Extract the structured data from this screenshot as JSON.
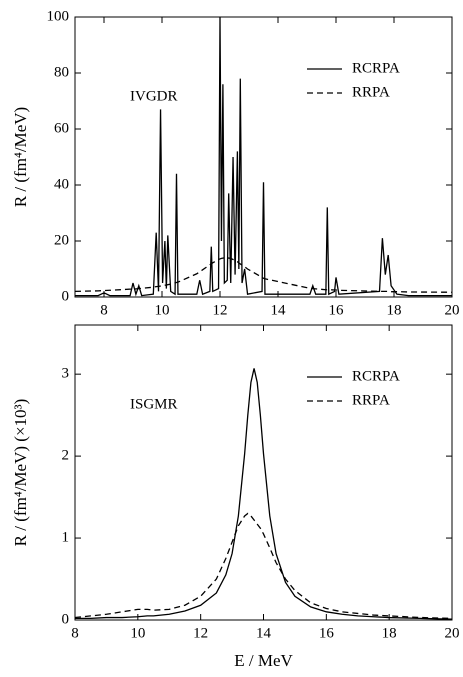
{
  "chart_data": [
    {
      "type": "line",
      "ylabel": "R / (fm⁴/MeV)",
      "annotation": "IVGDR",
      "xlim": [
        7,
        20
      ],
      "xticks": [
        8,
        10,
        12,
        14,
        16,
        18,
        20
      ],
      "ylim": [
        0,
        100
      ],
      "yticks": [
        0,
        20,
        40,
        60,
        80,
        100
      ],
      "legend": "upper right",
      "x": [
        7,
        7.8,
        8.0,
        8.2,
        8.9,
        9.0,
        9.1,
        9.2,
        9.3,
        9.7,
        9.8,
        9.88,
        9.95,
        10.02,
        10.1,
        10.15,
        10.2,
        10.3,
        10.45,
        10.5,
        10.55,
        11.2,
        11.3,
        11.4,
        11.65,
        11.7,
        11.75,
        11.95,
        12.0,
        12.05,
        12.1,
        12.15,
        12.25,
        12.3,
        12.37,
        12.45,
        12.52,
        12.6,
        12.65,
        12.7,
        12.76,
        12.85,
        12.95,
        13.45,
        13.5,
        13.55,
        15.1,
        15.2,
        15.3,
        15.65,
        15.7,
        15.75,
        15.95,
        16.0,
        16.1,
        17.5,
        17.6,
        17.7,
        17.8,
        17.9,
        18.1,
        18.5,
        20
      ],
      "series": [
        {
          "name": "RCRPA",
          "color": "#000000",
          "dashed": false,
          "values": [
            0.5,
            0.5,
            1.5,
            0.5,
            0.5,
            5,
            1,
            4,
            0.5,
            1,
            23,
            2,
            67,
            5,
            20,
            3,
            22,
            2,
            1,
            44,
            1,
            1,
            6,
            1,
            2,
            18,
            2,
            3,
            100,
            20,
            76,
            5,
            6,
            37,
            5,
            50,
            8,
            52,
            10,
            78,
            5,
            10,
            1,
            2,
            41,
            1,
            1,
            4,
            1,
            1,
            32,
            1,
            2,
            7,
            1,
            2,
            21,
            8,
            15,
            4,
            1,
            0.5,
            0.5
          ]
        },
        {
          "name": "RRPA",
          "color": "#000000",
          "dashed": true,
          "values": [
            2.0,
            2.2,
            2.3,
            2.4,
            2.8,
            2.8,
            2.9,
            3.0,
            3.1,
            3.5,
            3.7,
            3.8,
            3.9,
            4.0,
            4.2,
            4.3,
            4.4,
            4.6,
            5.0,
            5.2,
            5.3,
            8.3,
            9.0,
            9.7,
            11.5,
            11.8,
            12.2,
            13.4,
            13.6,
            13.8,
            13.9,
            14.0,
            14.0,
            13.9,
            13.8,
            13.4,
            13.0,
            12.6,
            12.2,
            11.8,
            11.4,
            10.8,
            10.0,
            7.0,
            6.7,
            6.5,
            3.1,
            3.0,
            2.9,
            2.6,
            2.6,
            2.6,
            2.5,
            2.5,
            2.4,
            2.0,
            2.0,
            2.0,
            2.0,
            1.9,
            1.9,
            1.8,
            1.7
          ]
        }
      ]
    },
    {
      "type": "line",
      "ylabel": "R / (fm⁴/MeV) (×10³)",
      "xlabel": "E / MeV",
      "annotation": "ISGMR",
      "xlim": [
        8,
        20
      ],
      "xticks": [
        8,
        10,
        12,
        14,
        16,
        18,
        20
      ],
      "ylim": [
        0,
        3.6
      ],
      "yticks": [
        0,
        1,
        2,
        3
      ],
      "legend": "upper right",
      "x": [
        8,
        8.5,
        9,
        9.5,
        10,
        10.3,
        10.5,
        11,
        11.5,
        12,
        12.5,
        12.8,
        13,
        13.2,
        13.4,
        13.5,
        13.6,
        13.7,
        13.8,
        13.9,
        14,
        14.2,
        14.4,
        14.7,
        15,
        15.5,
        16,
        16.5,
        17,
        17.5,
        18,
        19,
        20
      ],
      "series": [
        {
          "name": "RCRPA",
          "color": "#000000",
          "dashed": false,
          "values": [
            0.02,
            0.02,
            0.03,
            0.03,
            0.04,
            0.05,
            0.05,
            0.07,
            0.11,
            0.18,
            0.33,
            0.55,
            0.81,
            1.27,
            2.03,
            2.5,
            2.9,
            3.07,
            2.9,
            2.5,
            2.03,
            1.27,
            0.81,
            0.46,
            0.29,
            0.16,
            0.1,
            0.07,
            0.05,
            0.04,
            0.03,
            0.02,
            0.01
          ]
        },
        {
          "name": "RRPA",
          "color": "#000000",
          "dashed": true,
          "values": [
            0.03,
            0.05,
            0.07,
            0.1,
            0.13,
            0.13,
            0.12,
            0.13,
            0.18,
            0.29,
            0.5,
            0.75,
            0.95,
            1.15,
            1.27,
            1.3,
            1.27,
            1.22,
            1.17,
            1.12,
            1.05,
            0.88,
            0.7,
            0.5,
            0.36,
            0.21,
            0.14,
            0.1,
            0.08,
            0.06,
            0.05,
            0.03,
            0.02
          ]
        }
      ]
    }
  ]
}
